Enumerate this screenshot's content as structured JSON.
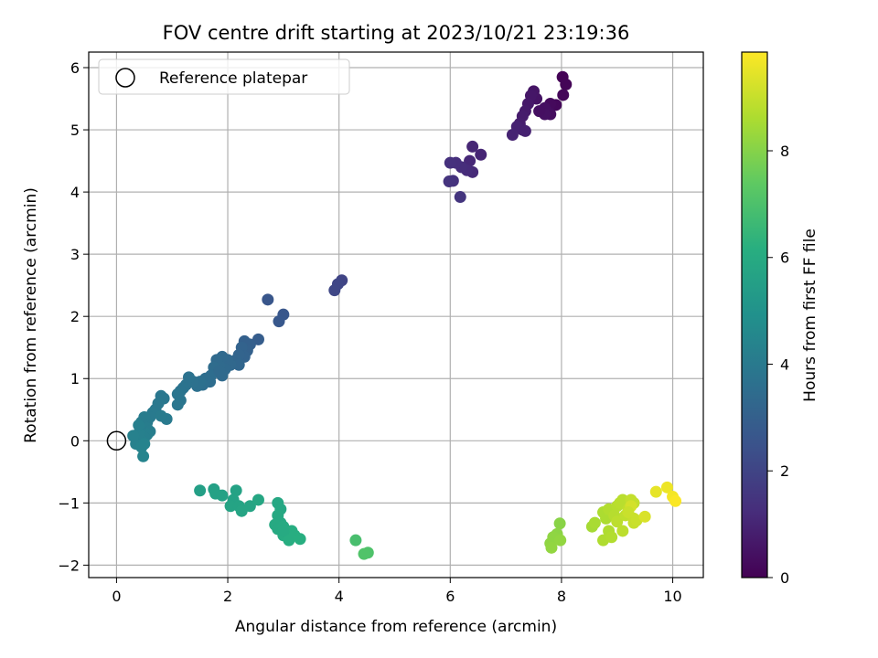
{
  "chart_data": {
    "type": "scatter",
    "title": "FOV centre drift starting at 2023/10/21 23:19:36",
    "xlabel": "Angular distance from reference (arcmin)",
    "ylabel": "Rotation from reference (arcmin)",
    "xlim": [
      -0.5,
      10.55
    ],
    "ylim": [
      -2.2,
      6.25
    ],
    "xticks": [
      0,
      2,
      4,
      6,
      8,
      10
    ],
    "yticks": [
      -2,
      -1,
      0,
      1,
      2,
      3,
      4,
      5,
      6
    ],
    "xtick_labels": [
      "0",
      "2",
      "4",
      "6",
      "8",
      "10"
    ],
    "ytick_labels": [
      "−2",
      "−1",
      "0",
      "1",
      "2",
      "3",
      "4",
      "5",
      "6"
    ],
    "grid": true,
    "legend": {
      "position": "top-left",
      "entries": [
        "Reference platepar"
      ]
    },
    "reference": {
      "x": 0,
      "y": 0,
      "marker": "open-circle"
    },
    "colorbar": {
      "label": "Hours from first FF file",
      "colormap": "viridis",
      "range": [
        0,
        9.85
      ],
      "ticks": [
        0,
        2,
        4,
        6,
        8
      ],
      "tick_labels": [
        "0",
        "2",
        "4",
        "6",
        "8"
      ]
    },
    "series": [
      {
        "points": [
          {
            "x": 8.02,
            "y": 5.85,
            "c": 0.05
          },
          {
            "x": 8.08,
            "y": 5.73,
            "c": 0.1
          },
          {
            "x": 8.03,
            "y": 5.56,
            "c": 0.15
          },
          {
            "x": 7.9,
            "y": 5.4,
            "c": 0.2
          },
          {
            "x": 7.8,
            "y": 5.42,
            "c": 0.25
          },
          {
            "x": 7.75,
            "y": 5.3,
            "c": 0.3
          },
          {
            "x": 7.8,
            "y": 5.25,
            "c": 0.35
          },
          {
            "x": 7.7,
            "y": 5.35,
            "c": 0.4
          },
          {
            "x": 7.7,
            "y": 5.25,
            "c": 0.45
          },
          {
            "x": 7.55,
            "y": 5.5,
            "c": 0.5
          },
          {
            "x": 7.5,
            "y": 5.62,
            "c": 0.55
          },
          {
            "x": 7.45,
            "y": 5.55,
            "c": 0.6
          },
          {
            "x": 7.4,
            "y": 5.42,
            "c": 0.65
          },
          {
            "x": 7.35,
            "y": 5.3,
            "c": 0.7
          },
          {
            "x": 7.3,
            "y": 5.22,
            "c": 0.75
          },
          {
            "x": 7.25,
            "y": 5.1,
            "c": 0.8
          },
          {
            "x": 7.3,
            "y": 5.0,
            "c": 0.85
          },
          {
            "x": 7.2,
            "y": 5.05,
            "c": 0.9
          },
          {
            "x": 7.12,
            "y": 4.92,
            "c": 0.95
          },
          {
            "x": 7.6,
            "y": 5.3,
            "c": 0.4
          },
          {
            "x": 7.35,
            "y": 4.98,
            "c": 0.9
          },
          {
            "x": 6.55,
            "y": 4.6,
            "c": 1.0
          },
          {
            "x": 6.4,
            "y": 4.73,
            "c": 1.05
          },
          {
            "x": 6.35,
            "y": 4.5,
            "c": 1.1
          },
          {
            "x": 6.4,
            "y": 4.32,
            "c": 1.15
          },
          {
            "x": 6.3,
            "y": 4.35,
            "c": 1.2
          },
          {
            "x": 6.2,
            "y": 4.4,
            "c": 1.25
          },
          {
            "x": 6.1,
            "y": 4.47,
            "c": 1.3
          },
          {
            "x": 6.0,
            "y": 4.47,
            "c": 1.35
          },
          {
            "x": 6.05,
            "y": 4.18,
            "c": 1.4
          },
          {
            "x": 5.98,
            "y": 4.17,
            "c": 1.45
          },
          {
            "x": 6.18,
            "y": 3.92,
            "c": 1.5
          },
          {
            "x": 4.05,
            "y": 2.58,
            "c": 2.0
          },
          {
            "x": 3.98,
            "y": 2.52,
            "c": 2.05
          },
          {
            "x": 3.92,
            "y": 2.42,
            "c": 2.1
          },
          {
            "x": 2.72,
            "y": 2.27,
            "c": 2.6
          },
          {
            "x": 3.0,
            "y": 2.03,
            "c": 2.65
          },
          {
            "x": 2.92,
            "y": 1.92,
            "c": 2.7
          },
          {
            "x": 2.55,
            "y": 1.63,
            "c": 2.9
          },
          {
            "x": 2.4,
            "y": 1.55,
            "c": 2.95
          },
          {
            "x": 2.3,
            "y": 1.6,
            "c": 3.0
          },
          {
            "x": 2.35,
            "y": 1.45,
            "c": 3.05
          },
          {
            "x": 2.25,
            "y": 1.5,
            "c": 3.1
          },
          {
            "x": 2.3,
            "y": 1.35,
            "c": 3.1
          },
          {
            "x": 2.2,
            "y": 1.38,
            "c": 3.15
          },
          {
            "x": 2.15,
            "y": 1.3,
            "c": 3.2
          },
          {
            "x": 2.1,
            "y": 1.25,
            "c": 3.2
          },
          {
            "x": 2.2,
            "y": 1.22,
            "c": 3.25
          },
          {
            "x": 2.05,
            "y": 1.22,
            "c": 3.3
          },
          {
            "x": 2.0,
            "y": 1.3,
            "c": 3.3
          },
          {
            "x": 1.95,
            "y": 1.15,
            "c": 3.35
          },
          {
            "x": 1.9,
            "y": 1.35,
            "c": 3.35
          },
          {
            "x": 1.85,
            "y": 1.2,
            "c": 3.4
          },
          {
            "x": 1.8,
            "y": 1.3,
            "c": 3.4
          },
          {
            "x": 1.75,
            "y": 1.18,
            "c": 3.45
          },
          {
            "x": 1.7,
            "y": 1.05,
            "c": 3.5
          },
          {
            "x": 1.68,
            "y": 0.95,
            "c": 3.5
          },
          {
            "x": 1.6,
            "y": 1.0,
            "c": 3.55
          },
          {
            "x": 1.55,
            "y": 0.9,
            "c": 3.55
          },
          {
            "x": 1.5,
            "y": 0.95,
            "c": 3.6
          },
          {
            "x": 1.45,
            "y": 0.88,
            "c": 3.6
          },
          {
            "x": 1.9,
            "y": 1.05,
            "c": 3.4
          },
          {
            "x": 1.85,
            "y": 1.12,
            "c": 3.4
          },
          {
            "x": 1.38,
            "y": 0.95,
            "c": 3.65
          },
          {
            "x": 1.3,
            "y": 1.02,
            "c": 3.7
          },
          {
            "x": 1.25,
            "y": 0.9,
            "c": 3.7
          },
          {
            "x": 1.2,
            "y": 0.85,
            "c": 3.75
          },
          {
            "x": 1.15,
            "y": 0.8,
            "c": 3.75
          },
          {
            "x": 1.1,
            "y": 0.75,
            "c": 3.8
          },
          {
            "x": 1.15,
            "y": 0.65,
            "c": 3.8
          },
          {
            "x": 1.1,
            "y": 0.58,
            "c": 3.85
          },
          {
            "x": 0.8,
            "y": 0.72,
            "c": 3.9
          },
          {
            "x": 0.85,
            "y": 0.68,
            "c": 3.9
          },
          {
            "x": 0.75,
            "y": 0.6,
            "c": 3.95
          },
          {
            "x": 0.7,
            "y": 0.5,
            "c": 3.95
          },
          {
            "x": 0.65,
            "y": 0.45,
            "c": 4.0
          },
          {
            "x": 0.6,
            "y": 0.38,
            "c": 4.0
          },
          {
            "x": 0.9,
            "y": 0.35,
            "c": 4.0
          },
          {
            "x": 0.8,
            "y": 0.4,
            "c": 4.05
          },
          {
            "x": 0.55,
            "y": 0.3,
            "c": 4.05
          },
          {
            "x": 0.5,
            "y": 0.38,
            "c": 4.1
          },
          {
            "x": 0.45,
            "y": 0.3,
            "c": 4.1
          },
          {
            "x": 0.55,
            "y": 0.2,
            "c": 4.15
          },
          {
            "x": 0.6,
            "y": 0.15,
            "c": 4.15
          },
          {
            "x": 0.55,
            "y": 0.1,
            "c": 4.2
          },
          {
            "x": 0.5,
            "y": 0.05,
            "c": 4.2
          },
          {
            "x": 0.45,
            "y": 0.0,
            "c": 4.25
          },
          {
            "x": 0.4,
            "y": 0.12,
            "c": 4.25
          },
          {
            "x": 0.35,
            "y": -0.05,
            "c": 4.3
          },
          {
            "x": 0.3,
            "y": 0.08,
            "c": 4.3
          },
          {
            "x": 0.45,
            "y": -0.1,
            "c": 4.35
          },
          {
            "x": 0.5,
            "y": -0.05,
            "c": 4.35
          },
          {
            "x": 0.48,
            "y": -0.25,
            "c": 4.4
          },
          {
            "x": 0.4,
            "y": 0.25,
            "c": 4.2
          },
          {
            "x": 1.5,
            "y": -0.8,
            "c": 5.5
          },
          {
            "x": 1.75,
            "y": -0.78,
            "c": 5.55
          },
          {
            "x": 1.78,
            "y": -0.85,
            "c": 5.6
          },
          {
            "x": 1.9,
            "y": -0.88,
            "c": 5.6
          },
          {
            "x": 2.15,
            "y": -0.8,
            "c": 5.65
          },
          {
            "x": 2.1,
            "y": -0.95,
            "c": 5.65
          },
          {
            "x": 2.05,
            "y": -1.05,
            "c": 5.7
          },
          {
            "x": 2.2,
            "y": -1.05,
            "c": 5.7
          },
          {
            "x": 2.25,
            "y": -1.13,
            "c": 5.75
          },
          {
            "x": 2.4,
            "y": -1.05,
            "c": 5.75
          },
          {
            "x": 2.55,
            "y": -0.95,
            "c": 5.8
          },
          {
            "x": 2.9,
            "y": -1.0,
            "c": 5.85
          },
          {
            "x": 2.95,
            "y": -1.1,
            "c": 5.85
          },
          {
            "x": 2.9,
            "y": -1.2,
            "c": 5.9
          },
          {
            "x": 2.95,
            "y": -1.32,
            "c": 5.9
          },
          {
            "x": 2.85,
            "y": -1.35,
            "c": 5.95
          },
          {
            "x": 2.9,
            "y": -1.42,
            "c": 5.95
          },
          {
            "x": 3.0,
            "y": -1.38,
            "c": 6.0
          },
          {
            "x": 3.05,
            "y": -1.45,
            "c": 6.0
          },
          {
            "x": 3.0,
            "y": -1.52,
            "c": 6.05
          },
          {
            "x": 3.1,
            "y": -1.5,
            "c": 6.05
          },
          {
            "x": 3.15,
            "y": -1.45,
            "c": 6.1
          },
          {
            "x": 3.1,
            "y": -1.6,
            "c": 6.1
          },
          {
            "x": 3.2,
            "y": -1.52,
            "c": 6.1
          },
          {
            "x": 3.3,
            "y": -1.58,
            "c": 6.15
          },
          {
            "x": 3.0,
            "y": -1.45,
            "c": 6.0
          },
          {
            "x": 4.3,
            "y": -1.6,
            "c": 6.9
          },
          {
            "x": 4.52,
            "y": -1.8,
            "c": 7.05
          },
          {
            "x": 4.45,
            "y": -1.82,
            "c": 7.1
          },
          {
            "x": 7.97,
            "y": -1.33,
            "c": 8.05
          },
          {
            "x": 7.92,
            "y": -1.5,
            "c": 8.1
          },
          {
            "x": 7.85,
            "y": -1.55,
            "c": 8.15
          },
          {
            "x": 7.8,
            "y": -1.65,
            "c": 8.15
          },
          {
            "x": 7.82,
            "y": -1.72,
            "c": 8.2
          },
          {
            "x": 7.98,
            "y": -1.6,
            "c": 8.2
          },
          {
            "x": 8.55,
            "y": -1.38,
            "c": 8.5
          },
          {
            "x": 8.6,
            "y": -1.32,
            "c": 8.55
          },
          {
            "x": 8.75,
            "y": -1.15,
            "c": 8.6
          },
          {
            "x": 8.8,
            "y": -1.25,
            "c": 8.6
          },
          {
            "x": 8.85,
            "y": -1.45,
            "c": 8.65
          },
          {
            "x": 8.75,
            "y": -1.6,
            "c": 8.65
          },
          {
            "x": 8.9,
            "y": -1.55,
            "c": 8.7
          },
          {
            "x": 8.85,
            "y": -1.1,
            "c": 8.7
          },
          {
            "x": 8.95,
            "y": -1.2,
            "c": 8.75
          },
          {
            "x": 9.0,
            "y": -1.05,
            "c": 8.75
          },
          {
            "x": 9.05,
            "y": -1.0,
            "c": 8.8
          },
          {
            "x": 9.1,
            "y": -0.95,
            "c": 8.8
          },
          {
            "x": 9.0,
            "y": -1.3,
            "c": 8.85
          },
          {
            "x": 9.1,
            "y": -1.45,
            "c": 8.85
          },
          {
            "x": 9.15,
            "y": -1.2,
            "c": 8.9
          },
          {
            "x": 9.2,
            "y": -1.1,
            "c": 8.9
          },
          {
            "x": 9.25,
            "y": -0.95,
            "c": 8.95
          },
          {
            "x": 9.3,
            "y": -1.0,
            "c": 8.95
          },
          {
            "x": 9.3,
            "y": -1.25,
            "c": 9.0
          },
          {
            "x": 9.3,
            "y": -1.32,
            "c": 9.0
          },
          {
            "x": 9.35,
            "y": -1.28,
            "c": 9.05
          },
          {
            "x": 9.25,
            "y": -1.05,
            "c": 9.2
          },
          {
            "x": 9.5,
            "y": -1.22,
            "c": 9.3
          },
          {
            "x": 9.2,
            "y": -1.15,
            "c": 9.05
          },
          {
            "x": 9.7,
            "y": -0.82,
            "c": 9.5
          },
          {
            "x": 9.9,
            "y": -0.75,
            "c": 9.6
          },
          {
            "x": 10.0,
            "y": -0.9,
            "c": 9.7
          },
          {
            "x": 10.05,
            "y": -0.97,
            "c": 9.8
          }
        ]
      }
    ]
  }
}
